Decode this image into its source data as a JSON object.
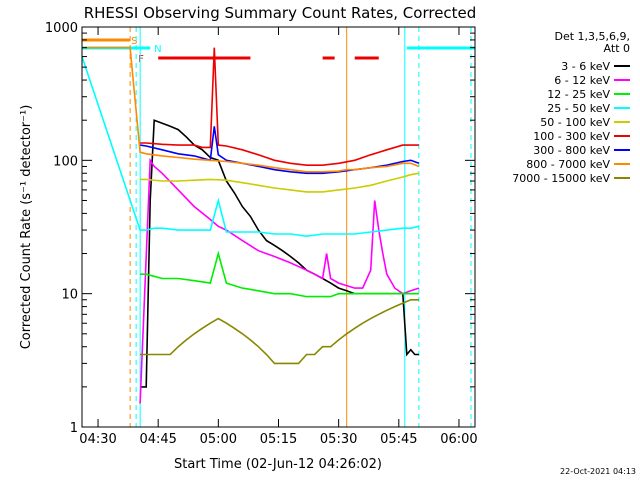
{
  "chart_data": {
    "type": "line",
    "title": "RHESSI Observing Summary Count Rates, Corrected",
    "xlabel": "Start Time (02-Jun-12 04:26:02)",
    "ylabel": "Corrected Count Rate (s⁻¹ detector⁻¹)",
    "ylim": [
      1,
      1000
    ],
    "yscale": "log",
    "xlim_minutes_after_0426": [
      0,
      98
    ],
    "x_ticks": [
      "04:30",
      "04:45",
      "05:00",
      "05:15",
      "05:30",
      "05:45",
      "06:00"
    ],
    "x_tick_minutes": [
      4,
      19,
      34,
      49,
      64,
      79,
      94
    ],
    "y_ticks": [
      "1",
      "10",
      "100",
      "1000"
    ],
    "y_tick_values": [
      1,
      10,
      100,
      1000
    ],
    "legend": {
      "placement": "right-outside",
      "header": [
        "Det 1,3,5,6,9,",
        "Att 0"
      ],
      "entries": [
        {
          "label": "3 - 6 keV",
          "color": "#000000"
        },
        {
          "label": "6 - 12 keV",
          "color": "#ff00ff"
        },
        {
          "label": "12 - 25 keV",
          "color": "#00ee00"
        },
        {
          "label": "25 - 50 keV",
          "color": "#00ffff"
        },
        {
          "label": "50 - 100 keV",
          "color": "#cccc00"
        },
        {
          "label": "100 - 300 keV",
          "color": "#ee0000"
        },
        {
          "label": "300 - 800 keV",
          "color": "#0000ff"
        },
        {
          "label": "800 - 7000 keV",
          "color": "#ff8800"
        },
        {
          "label": "7000 - 15000 keV",
          "color": "#888800"
        }
      ]
    },
    "flag_bars": [
      {
        "label": "S",
        "color": "#ff8800",
        "intervals": [
          [
            0,
            12
          ]
        ]
      },
      {
        "label": "N",
        "color": "#00ffff",
        "intervals": [
          [
            0,
            17
          ],
          [
            81,
            98
          ]
        ]
      },
      {
        "label": "F",
        "color": "#ee0000",
        "intervals": [
          [
            19,
            42
          ],
          [
            60,
            63
          ],
          [
            68,
            74
          ]
        ]
      }
    ],
    "vertical_lines": [
      {
        "minute": 12,
        "color": "#ff8800",
        "style": "dashed"
      },
      {
        "minute": 13.5,
        "color": "#00ffff",
        "style": "dashed"
      },
      {
        "minute": 14.5,
        "color": "#00ffff",
        "style": "solid"
      },
      {
        "minute": 66,
        "color": "#ff8800",
        "style": "solid"
      },
      {
        "minute": 80.5,
        "color": "#00ffff",
        "style": "solid"
      },
      {
        "minute": 84,
        "color": "#00ffff",
        "style": "dashed"
      },
      {
        "minute": 97,
        "color": "#00ffff",
        "style": "dashed"
      }
    ],
    "series": [
      {
        "name": "3 - 6 keV",
        "color": "#000000",
        "x": [
          14.5,
          16,
          17,
          18,
          20,
          22,
          24,
          26,
          28,
          30,
          32,
          34,
          36,
          38,
          40,
          42,
          44,
          46,
          48,
          50,
          52,
          54,
          56,
          58,
          60,
          62,
          64,
          66,
          68,
          70,
          72,
          74,
          76,
          78,
          80,
          81,
          82,
          83,
          84
        ],
        "y": [
          2,
          2,
          50,
          200,
          190,
          180,
          170,
          150,
          130,
          120,
          105,
          100,
          70,
          57,
          45,
          38,
          30,
          25,
          23,
          21,
          19,
          17,
          15,
          14,
          13,
          12,
          11,
          10.5,
          10,
          10,
          10,
          10,
          10,
          10,
          10,
          3.5,
          3.8,
          3.5,
          3.5
        ]
      },
      {
        "name": "6 - 12 keV",
        "color": "#ff00ff",
        "x": [
          14.5,
          17,
          18,
          20,
          24,
          28,
          32,
          34,
          36,
          40,
          44,
          48,
          52,
          56,
          58,
          60,
          61,
          62,
          64,
          66,
          68,
          70,
          72,
          73,
          74,
          75,
          76,
          78,
          80,
          82,
          84
        ],
        "y": [
          1.5,
          100,
          90,
          80,
          60,
          45,
          36,
          32,
          30,
          25,
          21,
          19,
          17,
          15,
          14,
          13,
          20,
          13,
          12,
          11.5,
          11,
          11,
          15,
          50,
          30,
          20,
          14,
          11,
          10,
          10.5,
          11
        ]
      },
      {
        "name": "12 - 25 keV",
        "color": "#00ee00",
        "x": [
          14.5,
          16,
          18,
          20,
          24,
          28,
          32,
          34,
          36,
          40,
          44,
          48,
          52,
          56,
          60,
          62,
          64,
          66,
          68,
          70,
          72,
          74,
          76,
          78,
          80,
          82,
          84
        ],
        "y": [
          14,
          14,
          13.5,
          13,
          13,
          12.5,
          12,
          20,
          12,
          11,
          10.5,
          10,
          10,
          9.5,
          9.5,
          9.5,
          10,
          10,
          10,
          10,
          10,
          10,
          10,
          10,
          10,
          10,
          10
        ]
      },
      {
        "name": "25 - 50 keV",
        "color": "#00ffff",
        "x": [
          0,
          14.5,
          16,
          18,
          20,
          24,
          28,
          32,
          34,
          36,
          40,
          44,
          48,
          52,
          56,
          60,
          64,
          68,
          72,
          76,
          80,
          82,
          84
        ],
        "y": [
          600,
          30,
          30,
          31,
          31,
          30,
          30,
          30,
          50,
          29,
          29,
          29,
          28,
          28,
          27,
          28,
          28,
          28,
          29,
          30,
          31,
          31,
          32
        ]
      },
      {
        "name": "50 - 100 keV",
        "color": "#cccc00",
        "x": [
          14.5,
          16,
          20,
          24,
          28,
          32,
          36,
          40,
          44,
          48,
          52,
          56,
          60,
          64,
          68,
          72,
          76,
          80,
          82,
          84
        ],
        "y": [
          72,
          72,
          70,
          70,
          71,
          72,
          71,
          68,
          65,
          62,
          60,
          58,
          58,
          60,
          62,
          65,
          70,
          75,
          78,
          80
        ]
      },
      {
        "name": "100 - 300 keV",
        "color": "#ee0000",
        "x": [
          14.5,
          16,
          20,
          24,
          28,
          30,
          32,
          33,
          34,
          36,
          40,
          44,
          48,
          52,
          56,
          60,
          64,
          68,
          72,
          76,
          80,
          82,
          84
        ],
        "y": [
          135,
          135,
          132,
          130,
          130,
          125,
          125,
          700,
          130,
          128,
          120,
          110,
          100,
          95,
          92,
          92,
          95,
          100,
          110,
          120,
          130,
          130,
          130
        ]
      },
      {
        "name": "300 - 800 keV",
        "color": "#0000ff",
        "x": [
          14.5,
          16,
          20,
          24,
          28,
          32,
          33,
          34,
          36,
          40,
          44,
          48,
          52,
          56,
          60,
          64,
          68,
          72,
          76,
          80,
          82,
          84
        ],
        "y": [
          130,
          128,
          120,
          112,
          108,
          100,
          180,
          110,
          100,
          95,
          90,
          85,
          82,
          80,
          80,
          82,
          85,
          88,
          92,
          98,
          100,
          95
        ]
      },
      {
        "name": "800 - 7000 keV",
        "color": "#ff8800",
        "x": [
          0,
          12,
          14.5,
          16,
          20,
          24,
          28,
          32,
          36,
          40,
          44,
          48,
          52,
          56,
          60,
          64,
          66,
          68,
          72,
          76,
          80,
          82,
          84
        ],
        "y": [
          700,
          700,
          115,
          112,
          108,
          105,
          102,
          100,
          98,
          95,
          92,
          88,
          85,
          82,
          82,
          83,
          85,
          85,
          88,
          90,
          95,
          95,
          90
        ]
      },
      {
        "name": "7000 - 15000 keV",
        "color": "#888800",
        "x": [
          14.5,
          16,
          18,
          20,
          22,
          24,
          26,
          28,
          30,
          32,
          34,
          36,
          38,
          40,
          42,
          44,
          46,
          48,
          50,
          52,
          54,
          56,
          58,
          60,
          62,
          64,
          66,
          68,
          70,
          72,
          74,
          76,
          78,
          80,
          82,
          84
        ],
        "y": [
          3.5,
          3.5,
          3.5,
          3.5,
          3.5,
          4,
          4.5,
          5,
          5.5,
          6,
          6.5,
          6,
          5.5,
          5,
          4.5,
          4,
          3.5,
          3,
          3,
          3,
          3,
          3.5,
          3.5,
          4,
          4,
          4.5,
          5,
          5.5,
          6,
          6.5,
          7,
          7.5,
          8,
          8.5,
          9,
          9
        ]
      }
    ]
  },
  "footer": {
    "date_stamp": "22-Oct-2021 04:13"
  }
}
